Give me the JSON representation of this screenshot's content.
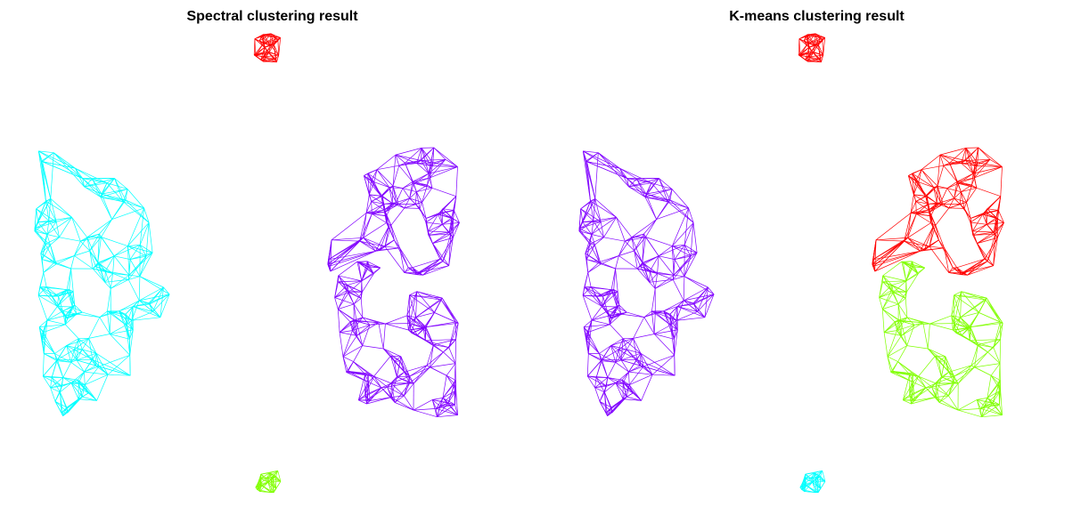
{
  "panels": [
    {
      "title": "Spectral clustering result"
    },
    {
      "title": "K-means clustering result"
    }
  ],
  "colors": {
    "red": "#ff0000",
    "cyan": "#00ffff",
    "purple": "#8000ff",
    "green": "#80ff00"
  },
  "graph": {
    "node_shape": "none",
    "edges": "k-nearest-neighbour mesh",
    "groups": [
      "top-blob",
      "left-half-ring",
      "right-half-ring-upper",
      "right-half-ring-lower",
      "bottom-blob"
    ]
  },
  "assignments": {
    "spectral": {
      "top-blob": "red",
      "left-half-ring": "cyan",
      "right-half-ring-upper": "purple",
      "right-half-ring-lower": "purple",
      "bottom-blob": "green"
    },
    "kmeans": {
      "top-blob": "red",
      "left-half-ring": "purple",
      "right-half-ring-upper": "red",
      "right-half-ring-lower": "green",
      "bottom-blob": "cyan"
    }
  }
}
